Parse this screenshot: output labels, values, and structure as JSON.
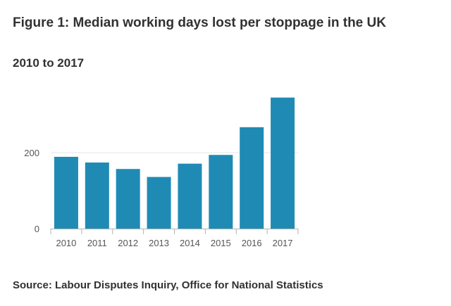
{
  "title": "Figure 1: Median working days lost per stoppage in the UK",
  "subtitle": "2010 to 2017",
  "source": "Source: Labour Disputes Inquiry, Office for National Statistics",
  "chart_data": {
    "type": "bar",
    "categories": [
      "2010",
      "2011",
      "2012",
      "2013",
      "2014",
      "2015",
      "2016",
      "2017"
    ],
    "values": [
      189,
      174,
      157,
      136,
      171,
      194,
      267,
      345
    ],
    "ylim": [
      0,
      350
    ],
    "yticks": [
      0,
      200
    ],
    "grid": true,
    "bar_color": "#1f8bb5",
    "grid_color": "#e6e6e6",
    "axis_color": "#b3b3b3"
  }
}
